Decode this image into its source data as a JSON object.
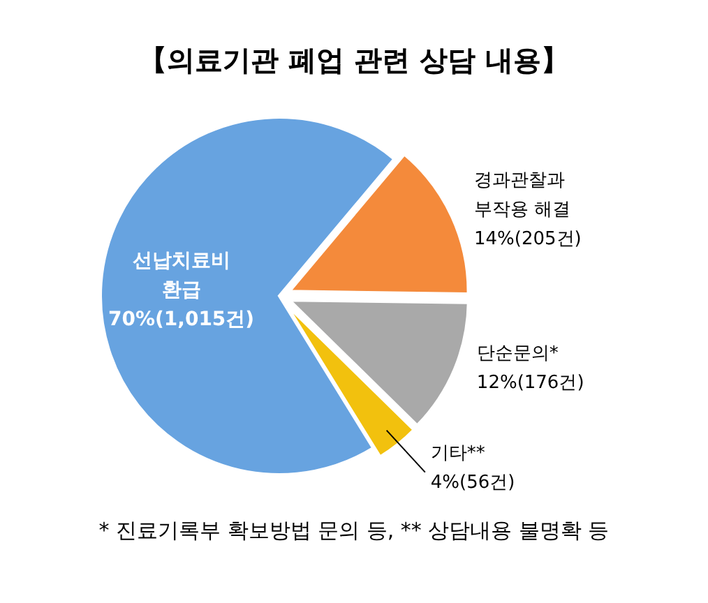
{
  "chart_data": {
    "type": "pie",
    "title": "【의료기관 폐업 관련 상담 내용】",
    "categories": [
      "선납치료비 환급",
      "경과관찰과 부작용 해결",
      "단순문의*",
      "기타**"
    ],
    "values": [
      1015,
      205,
      176,
      56
    ],
    "value_labels": [
      "70%(1,015건)",
      "14%(205건)",
      "12%(176건)",
      "4%(56건)"
    ],
    "colors": [
      "#67a3e0",
      "#f48a3b",
      "#a9a9a9",
      "#f2c10e"
    ],
    "annotations": [
      "* 진료기록부 확보방법 문의 등, ** 상담내용 불명확 등"
    ]
  }
}
